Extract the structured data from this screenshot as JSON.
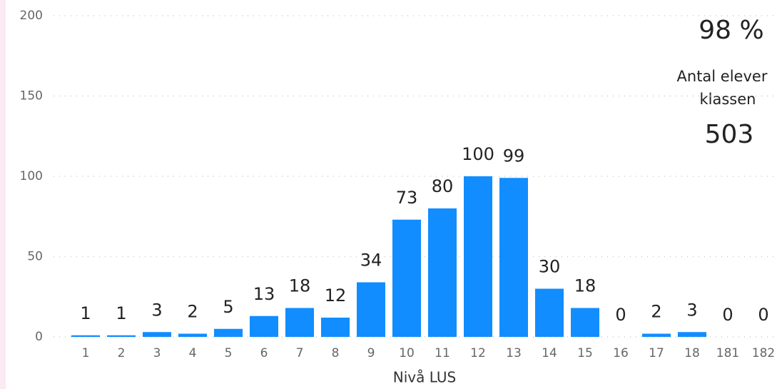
{
  "chart_data": {
    "type": "bar",
    "xlabel": "Nivå LUS",
    "categories": [
      "1",
      "2",
      "3",
      "4",
      "5",
      "6",
      "7",
      "8",
      "9",
      "10",
      "11",
      "12",
      "13",
      "14",
      "15",
      "16",
      "17",
      "18",
      "181",
      "182"
    ],
    "values": [
      1,
      1,
      3,
      2,
      5,
      13,
      18,
      12,
      34,
      73,
      80,
      100,
      99,
      30,
      18,
      0,
      2,
      3,
      0,
      0
    ],
    "color": "#118dff",
    "ylim": [
      0,
      200
    ],
    "yticks": [
      0,
      50,
      100,
      150,
      200
    ],
    "grid": true
  },
  "cards": [
    {
      "value": 98,
      "value_label": "98 %"
    },
    {
      "title_lines": [
        "Antal elever",
        "klassen"
      ],
      "value": 503
    }
  ]
}
